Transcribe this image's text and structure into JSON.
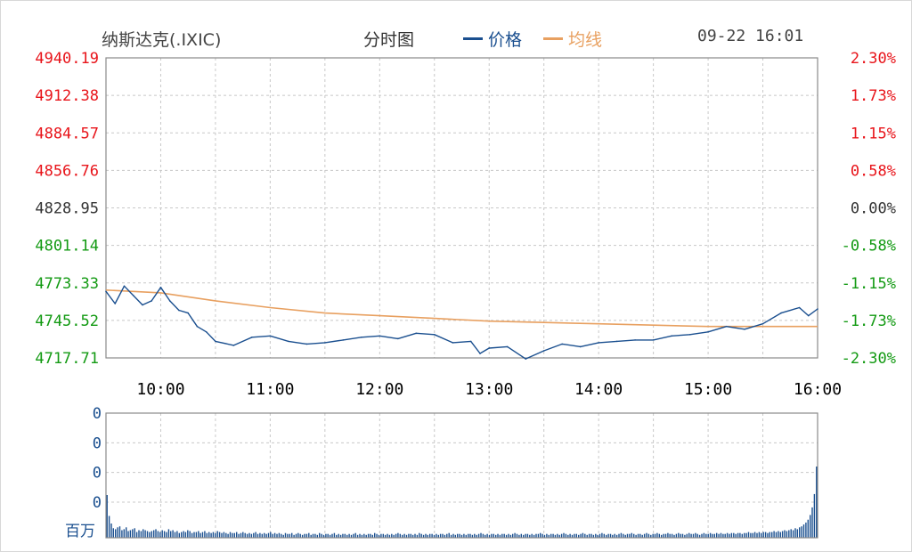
{
  "header": {
    "title": "纳斯达克(.IXIC)",
    "view_label": "分时图",
    "legend_price": "价格",
    "legend_avg": "均线",
    "datetime": "09-22 16:01"
  },
  "colors": {
    "price": "#1a4f8f",
    "avg": "#e8a060",
    "up": "#e8141a",
    "down": "#139a13",
    "flat": "#333333",
    "volume": "#1a4f8f",
    "grid": "#c8c8c8"
  },
  "chart_data": [
    {
      "type": "line",
      "title": "纳斯达克(.IXIC)",
      "x_tick_labels": [
        "10:00",
        "11:00",
        "12:00",
        "13:00",
        "14:00",
        "15:00",
        "16:00"
      ],
      "y_tick_labels": [
        "4940.19",
        "4912.38",
        "4884.57",
        "4856.76",
        "4828.95",
        "4801.14",
        "4773.33",
        "4745.52",
        "4717.71"
      ],
      "y_right_tick_labels": [
        "2.30%",
        "1.73%",
        "1.15%",
        "0.58%",
        "0.00%",
        "-0.58%",
        "-1.15%",
        "-1.73%",
        "-2.30%"
      ],
      "ylim": [
        4717.71,
        4940.19
      ],
      "prev_close": 4828.95,
      "xlim": [
        "09:30",
        "16:00"
      ],
      "grid": true,
      "series": [
        {
          "name": "价格",
          "x": [
            "09:30",
            "09:35",
            "09:40",
            "09:45",
            "09:50",
            "09:55",
            "10:00",
            "10:05",
            "10:10",
            "10:15",
            "10:20",
            "10:25",
            "10:30",
            "10:40",
            "10:50",
            "11:00",
            "11:10",
            "11:20",
            "11:30",
            "11:40",
            "11:50",
            "12:00",
            "12:10",
            "12:20",
            "12:30",
            "12:40",
            "12:50",
            "12:55",
            "13:00",
            "13:10",
            "13:20",
            "13:30",
            "13:40",
            "13:50",
            "14:00",
            "14:10",
            "14:20",
            "14:30",
            "14:40",
            "14:50",
            "15:00",
            "15:10",
            "15:20",
            "15:30",
            "15:40",
            "15:50",
            "15:55",
            "16:00"
          ],
          "values": [
            4767,
            4758,
            4771,
            4764,
            4757,
            4760,
            4770,
            4760,
            4753,
            4751,
            4741,
            4737,
            4730,
            4727,
            4733,
            4734,
            4730,
            4728,
            4729,
            4731,
            4733,
            4734,
            4732,
            4736,
            4735,
            4729,
            4730,
            4721,
            4725,
            4726,
            4717,
            4723,
            4728,
            4726,
            4729,
            4730,
            4731,
            4731,
            4734,
            4735,
            4737,
            4741,
            4739,
            4743,
            4751,
            4755,
            4749,
            4754
          ]
        },
        {
          "name": "均线",
          "x": [
            "09:30",
            "10:00",
            "10:30",
            "11:00",
            "11:30",
            "12:00",
            "12:30",
            "13:00",
            "13:30",
            "14:00",
            "14:30",
            "15:00",
            "15:30",
            "16:00"
          ],
          "values": [
            4768,
            4766,
            4760,
            4755,
            4751,
            4749,
            4747,
            4745,
            4744,
            4743,
            4742,
            4741,
            4741,
            4741
          ]
        }
      ]
    },
    {
      "type": "bar",
      "title": "",
      "y_tick_labels": [
        "0",
        "0",
        "0",
        "0"
      ],
      "ylabel": "百万",
      "xlim": [
        "09:30",
        "16:00"
      ],
      "grid": true,
      "values_note_free": true,
      "x_interval_minutes": 1,
      "values": [
        4.5,
        2.3,
        1.5,
        1.0,
        0.9,
        1.1,
        1.2,
        0.8,
        0.9,
        1.1,
        0.7,
        0.8,
        0.9,
        1.0,
        0.6,
        0.8,
        0.7,
        0.9,
        0.8,
        0.7,
        0.6,
        0.7,
        0.8,
        0.9,
        0.7,
        0.6,
        0.8,
        0.7,
        0.6,
        0.9,
        0.7,
        0.8,
        0.6,
        0.7,
        0.5,
        0.6,
        0.7,
        0.6,
        0.8,
        0.7,
        0.5,
        0.6,
        0.6,
        0.7,
        0.5,
        0.6,
        0.7,
        0.5,
        0.6,
        0.5,
        0.6,
        0.5,
        0.7,
        0.6,
        0.5,
        0.6,
        0.5,
        0.4,
        0.6,
        0.5,
        0.5,
        0.6,
        0.4,
        0.5,
        0.6,
        0.5,
        0.4,
        0.5,
        0.4,
        0.5,
        0.6,
        0.4,
        0.5,
        0.4,
        0.5,
        0.4,
        0.5,
        0.6,
        0.4,
        0.5,
        0.4,
        0.5,
        0.4,
        0.3,
        0.5,
        0.4,
        0.4,
        0.5,
        0.3,
        0.4,
        0.5,
        0.4,
        0.3,
        0.4,
        0.4,
        0.5,
        0.3,
        0.4,
        0.4,
        0.3,
        0.5,
        0.4,
        0.3,
        0.4,
        0.4,
        0.3,
        0.4,
        0.5,
        0.3,
        0.4,
        0.3,
        0.4,
        0.4,
        0.3,
        0.4,
        0.3,
        0.4,
        0.5,
        0.3,
        0.4,
        0.3,
        0.4,
        0.3,
        0.4,
        0.4,
        0.3,
        0.5,
        0.4,
        0.3,
        0.4,
        0.4,
        0.3,
        0.4,
        0.3,
        0.4,
        0.3,
        0.4,
        0.5,
        0.4,
        0.3,
        0.4,
        0.3,
        0.4,
        0.4,
        0.3,
        0.4,
        0.3,
        0.5,
        0.4,
        0.3,
        0.4,
        0.3,
        0.4,
        0.4,
        0.3,
        0.4,
        0.3,
        0.4,
        0.4,
        0.3,
        0.4,
        0.5,
        0.3,
        0.4,
        0.3,
        0.4,
        0.4,
        0.3,
        0.4,
        0.3,
        0.4,
        0.4,
        0.3,
        0.4,
        0.3,
        0.4,
        0.5,
        0.4,
        0.3,
        0.4,
        0.3,
        0.4,
        0.4,
        0.3,
        0.4,
        0.3,
        0.4,
        0.4,
        0.3,
        0.4,
        0.3,
        0.4,
        0.5,
        0.4,
        0.3,
        0.4,
        0.3,
        0.4,
        0.4,
        0.3,
        0.4,
        0.3,
        0.4,
        0.4,
        0.5,
        0.4,
        0.3,
        0.4,
        0.3,
        0.4,
        0.4,
        0.3,
        0.4,
        0.3,
        0.4,
        0.5,
        0.4,
        0.3,
        0.4,
        0.3,
        0.4,
        0.4,
        0.3,
        0.4,
        0.5,
        0.4,
        0.3,
        0.4,
        0.4,
        0.3,
        0.4,
        0.3,
        0.4,
        0.5,
        0.4,
        0.3,
        0.4,
        0.4,
        0.3,
        0.4,
        0.3,
        0.4,
        0.5,
        0.4,
        0.3,
        0.4,
        0.4,
        0.5,
        0.4,
        0.3,
        0.4,
        0.4,
        0.3,
        0.4,
        0.5,
        0.4,
        0.3,
        0.4,
        0.4,
        0.5,
        0.4,
        0.3,
        0.4,
        0.4,
        0.5,
        0.4,
        0.4,
        0.3,
        0.4,
        0.5,
        0.4,
        0.4,
        0.3,
        0.4,
        0.5,
        0.4,
        0.4,
        0.5,
        0.4,
        0.3,
        0.4,
        0.5,
        0.4,
        0.4,
        0.5,
        0.4,
        0.4,
        0.5,
        0.4,
        0.5,
        0.4,
        0.4,
        0.5,
        0.4,
        0.5,
        0.5,
        0.4,
        0.5,
        0.5,
        0.4,
        0.5,
        0.5,
        0.6,
        0.5,
        0.5,
        0.6,
        0.5,
        0.6,
        0.5,
        0.6,
        0.6,
        0.5,
        0.6,
        0.6,
        0.7,
        0.6,
        0.7,
        0.6,
        0.7,
        0.8,
        0.7,
        0.8,
        0.9,
        0.8,
        1.0,
        0.9,
        1.1,
        1.2,
        1.4,
        1.6,
        1.9,
        2.4,
        3.2,
        4.6,
        7.5
      ]
    }
  ]
}
